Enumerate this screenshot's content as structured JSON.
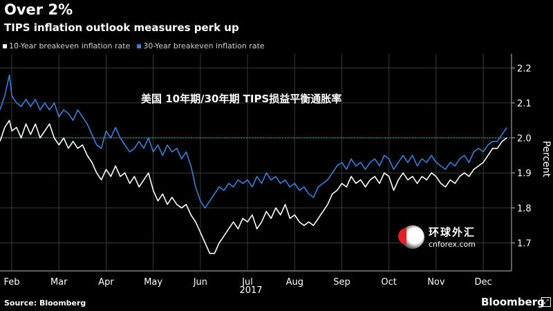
{
  "header": {
    "title": "Over 2%",
    "subtitle": "TIPS inflation outlook measures perk up"
  },
  "legend": {
    "items": [
      {
        "label": "10-Year breakeven inflation rate",
        "color": "#ffffff"
      },
      {
        "label": "30-Year breakeven inflation rate",
        "color": "#3d7fd4"
      }
    ]
  },
  "overlay_caption": "美国 10年期/30年期 TIPS损益平衡通胀率",
  "watermark": {
    "cn": "环球外汇",
    "en": "cnforex.com"
  },
  "footer": {
    "source": "Source: Bloomberg",
    "brand": "Bloomberg"
  },
  "colors": {
    "background": "#000000",
    "series_10y": "#ffffff",
    "series_30y": "#3d7fd4",
    "reference_line": "#2aa39a",
    "grid": "#3a3a3a"
  },
  "chart_data": {
    "type": "line",
    "title": "Over 2%",
    "subtitle": "TIPS inflation outlook measures perk up",
    "xlabel": "2017",
    "ylabel": "Percent",
    "x_ticks": [
      "Feb",
      "Mar",
      "Apr",
      "May",
      "Jun",
      "Jul",
      "Aug",
      "Sep",
      "Oct",
      "Nov",
      "Dec"
    ],
    "x_tick_pos": [
      2.0,
      3.0,
      4.0,
      5.0,
      6.0,
      7.0,
      8.0,
      9.0,
      10.0,
      11.0,
      12.0
    ],
    "xlim": [
      1.75,
      12.6
    ],
    "ylim": [
      1.62,
      2.24
    ],
    "y_ticks": [
      1.7,
      1.8,
      1.9,
      2.0,
      2.1,
      2.2
    ],
    "y_tick_labels": [
      "1.7",
      "1.8",
      "1.9",
      "2.0",
      "2.1",
      "2.2"
    ],
    "reference_line": 2.0,
    "grid": true,
    "legend_position": "top-left",
    "series": [
      {
        "name": "10-Year breakeven inflation rate",
        "color": "#ffffff",
        "points": [
          [
            1.75,
            1.99
          ],
          [
            1.85,
            2.03
          ],
          [
            1.95,
            2.05
          ],
          [
            2.0,
            2.02
          ],
          [
            2.1,
            2.03
          ],
          [
            2.2,
            2.0
          ],
          [
            2.3,
            2.04
          ],
          [
            2.4,
            2.01
          ],
          [
            2.5,
            2.04
          ],
          [
            2.6,
            2.0
          ],
          [
            2.7,
            2.02
          ],
          [
            2.8,
            2.04
          ],
          [
            2.9,
            2.0
          ],
          [
            3.0,
            1.98
          ],
          [
            3.1,
            2.0
          ],
          [
            3.2,
            1.97
          ],
          [
            3.3,
            1.99
          ],
          [
            3.4,
            1.97
          ],
          [
            3.5,
            1.98
          ],
          [
            3.6,
            1.95
          ],
          [
            3.7,
            1.93
          ],
          [
            3.8,
            1.9
          ],
          [
            3.9,
            1.88
          ],
          [
            4.0,
            1.91
          ],
          [
            4.1,
            1.89
          ],
          [
            4.2,
            1.92
          ],
          [
            4.3,
            1.89
          ],
          [
            4.4,
            1.9
          ],
          [
            4.5,
            1.87
          ],
          [
            4.6,
            1.89
          ],
          [
            4.7,
            1.86
          ],
          [
            4.8,
            1.88
          ],
          [
            4.9,
            1.9
          ],
          [
            5.0,
            1.85
          ],
          [
            5.1,
            1.82
          ],
          [
            5.2,
            1.84
          ],
          [
            5.3,
            1.81
          ],
          [
            5.4,
            1.83
          ],
          [
            5.5,
            1.81
          ],
          [
            5.6,
            1.8
          ],
          [
            5.7,
            1.81
          ],
          [
            5.8,
            1.78
          ],
          [
            5.9,
            1.76
          ],
          [
            6.0,
            1.73
          ],
          [
            6.1,
            1.7
          ],
          [
            6.2,
            1.67
          ],
          [
            6.3,
            1.67
          ],
          [
            6.4,
            1.7
          ],
          [
            6.5,
            1.72
          ],
          [
            6.6,
            1.74
          ],
          [
            6.7,
            1.76
          ],
          [
            6.8,
            1.74
          ],
          [
            6.9,
            1.77
          ],
          [
            7.0,
            1.76
          ],
          [
            7.1,
            1.78
          ],
          [
            7.2,
            1.74
          ],
          [
            7.3,
            1.76
          ],
          [
            7.4,
            1.79
          ],
          [
            7.5,
            1.77
          ],
          [
            7.6,
            1.8
          ],
          [
            7.7,
            1.78
          ],
          [
            7.8,
            1.81
          ],
          [
            7.9,
            1.77
          ],
          [
            8.0,
            1.78
          ],
          [
            8.1,
            1.76
          ],
          [
            8.2,
            1.75
          ],
          [
            8.3,
            1.76
          ],
          [
            8.4,
            1.75
          ],
          [
            8.5,
            1.77
          ],
          [
            8.6,
            1.79
          ],
          [
            8.7,
            1.81
          ],
          [
            8.8,
            1.84
          ],
          [
            8.9,
            1.85
          ],
          [
            9.0,
            1.87
          ],
          [
            9.1,
            1.86
          ],
          [
            9.2,
            1.89
          ],
          [
            9.3,
            1.87
          ],
          [
            9.4,
            1.88
          ],
          [
            9.5,
            1.86
          ],
          [
            9.6,
            1.88
          ],
          [
            9.7,
            1.89
          ],
          [
            9.8,
            1.87
          ],
          [
            9.9,
            1.9
          ],
          [
            10.0,
            1.89
          ],
          [
            10.1,
            1.85
          ],
          [
            10.2,
            1.88
          ],
          [
            10.3,
            1.9
          ],
          [
            10.4,
            1.88
          ],
          [
            10.5,
            1.89
          ],
          [
            10.6,
            1.87
          ],
          [
            10.7,
            1.89
          ],
          [
            10.8,
            1.88
          ],
          [
            10.9,
            1.9
          ],
          [
            11.0,
            1.89
          ],
          [
            11.1,
            1.87
          ],
          [
            11.2,
            1.86
          ],
          [
            11.3,
            1.88
          ],
          [
            11.4,
            1.87
          ],
          [
            11.5,
            1.89
          ],
          [
            11.6,
            1.9
          ],
          [
            11.7,
            1.89
          ],
          [
            11.8,
            1.91
          ],
          [
            11.9,
            1.92
          ],
          [
            12.0,
            1.93
          ],
          [
            12.1,
            1.95
          ],
          [
            12.2,
            1.97
          ],
          [
            12.3,
            1.97
          ],
          [
            12.4,
            1.99
          ],
          [
            12.5,
            2.0
          ]
        ]
      },
      {
        "name": "30-Year breakeven inflation rate",
        "color": "#3d7fd4",
        "points": [
          [
            1.75,
            2.08
          ],
          [
            1.85,
            2.12
          ],
          [
            1.95,
            2.18
          ],
          [
            2.0,
            2.12
          ],
          [
            2.1,
            2.1
          ],
          [
            2.2,
            2.09
          ],
          [
            2.3,
            2.11
          ],
          [
            2.4,
            2.09
          ],
          [
            2.5,
            2.11
          ],
          [
            2.6,
            2.08
          ],
          [
            2.7,
            2.1
          ],
          [
            2.8,
            2.08
          ],
          [
            2.9,
            2.1
          ],
          [
            3.0,
            2.06
          ],
          [
            3.1,
            2.08
          ],
          [
            3.2,
            2.07
          ],
          [
            3.3,
            2.05
          ],
          [
            3.4,
            2.08
          ],
          [
            3.5,
            2.06
          ],
          [
            3.6,
            2.04
          ],
          [
            3.7,
            2.01
          ],
          [
            3.8,
            1.98
          ],
          [
            3.9,
            1.97
          ],
          [
            4.0,
            2.02
          ],
          [
            4.1,
            2.0
          ],
          [
            4.2,
            2.03
          ],
          [
            4.3,
            2.0
          ],
          [
            4.4,
            1.98
          ],
          [
            4.5,
            1.96
          ],
          [
            4.6,
            1.97
          ],
          [
            4.7,
            1.99
          ],
          [
            4.8,
            1.97
          ],
          [
            4.9,
            2.0
          ],
          [
            5.0,
            1.96
          ],
          [
            5.1,
            1.98
          ],
          [
            5.2,
            1.95
          ],
          [
            5.3,
            1.98
          ],
          [
            5.4,
            1.96
          ],
          [
            5.5,
            1.97
          ],
          [
            5.6,
            1.94
          ],
          [
            5.7,
            1.96
          ],
          [
            5.8,
            1.92
          ],
          [
            5.9,
            1.86
          ],
          [
            6.0,
            1.82
          ],
          [
            6.1,
            1.8
          ],
          [
            6.2,
            1.82
          ],
          [
            6.3,
            1.84
          ],
          [
            6.4,
            1.86
          ],
          [
            6.5,
            1.85
          ],
          [
            6.6,
            1.87
          ],
          [
            6.7,
            1.86
          ],
          [
            6.8,
            1.88
          ],
          [
            6.9,
            1.87
          ],
          [
            7.0,
            1.88
          ],
          [
            7.1,
            1.86
          ],
          [
            7.2,
            1.89
          ],
          [
            7.3,
            1.87
          ],
          [
            7.4,
            1.9
          ],
          [
            7.5,
            1.88
          ],
          [
            7.6,
            1.89
          ],
          [
            7.7,
            1.87
          ],
          [
            7.8,
            1.88
          ],
          [
            7.9,
            1.86
          ],
          [
            8.0,
            1.87
          ],
          [
            8.1,
            1.85
          ],
          [
            8.2,
            1.86
          ],
          [
            8.3,
            1.84
          ],
          [
            8.4,
            1.83
          ],
          [
            8.5,
            1.86
          ],
          [
            8.6,
            1.87
          ],
          [
            8.7,
            1.88
          ],
          [
            8.8,
            1.9
          ],
          [
            8.9,
            1.92
          ],
          [
            9.0,
            1.93
          ],
          [
            9.1,
            1.91
          ],
          [
            9.2,
            1.94
          ],
          [
            9.3,
            1.92
          ],
          [
            9.4,
            1.93
          ],
          [
            9.5,
            1.91
          ],
          [
            9.6,
            1.93
          ],
          [
            9.7,
            1.94
          ],
          [
            9.8,
            1.92
          ],
          [
            9.9,
            1.95
          ],
          [
            10.0,
            1.94
          ],
          [
            10.1,
            1.91
          ],
          [
            10.2,
            1.93
          ],
          [
            10.3,
            1.95
          ],
          [
            10.4,
            1.93
          ],
          [
            10.5,
            1.95
          ],
          [
            10.6,
            1.92
          ],
          [
            10.7,
            1.94
          ],
          [
            10.8,
            1.93
          ],
          [
            10.9,
            1.95
          ],
          [
            11.0,
            1.93
          ],
          [
            11.1,
            1.92
          ],
          [
            11.2,
            1.91
          ],
          [
            11.3,
            1.93
          ],
          [
            11.4,
            1.92
          ],
          [
            11.5,
            1.94
          ],
          [
            11.6,
            1.95
          ],
          [
            11.7,
            1.93
          ],
          [
            11.8,
            1.96
          ],
          [
            11.9,
            1.97
          ],
          [
            12.0,
            1.96
          ],
          [
            12.1,
            1.98
          ],
          [
            12.2,
            1.99
          ],
          [
            12.3,
            1.99
          ],
          [
            12.4,
            2.01
          ],
          [
            12.5,
            2.03
          ]
        ]
      }
    ]
  }
}
